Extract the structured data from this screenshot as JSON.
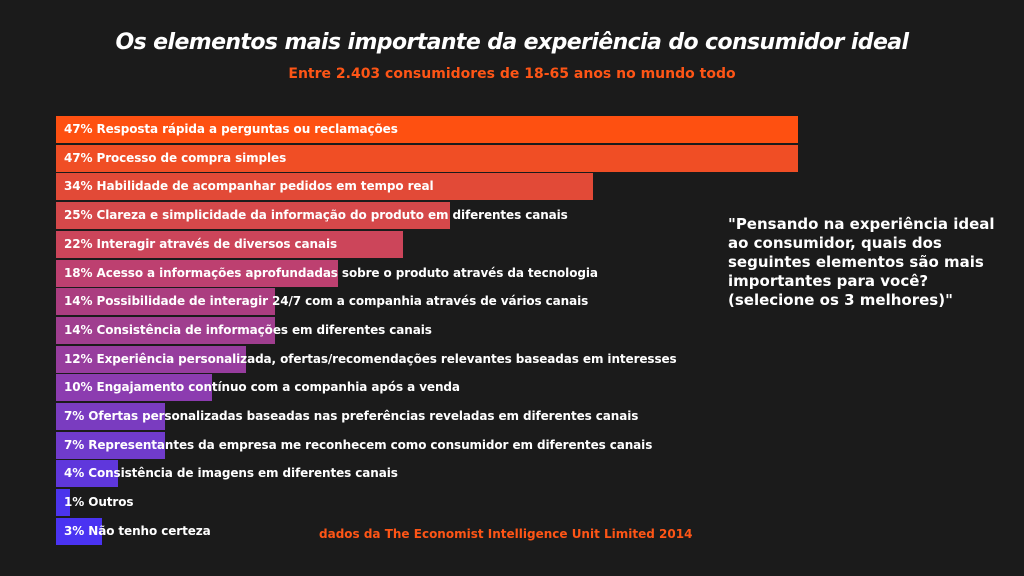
{
  "chart_data": {
    "type": "bar",
    "orientation": "horizontal",
    "title": "Os elementos mais importante da experiência do consumidor ideal",
    "subtitle": "Entre 2.403 consumidores de 18-65 anos no mundo todo",
    "xlabel": "",
    "ylabel": "",
    "unit": "%",
    "grid": false,
    "legend": "none",
    "categories": [
      "Resposta rápida a perguntas ou reclamações",
      "Processo de compra simples",
      "Habilidade de acompanhar pedidos em tempo real",
      "Clareza e simplicidade da informação do produto em diferentes canais",
      "Interagir através de diversos canais",
      "Acesso a informações aprofundadas sobre o produto através da tecnologia",
      "Possibilidade de interagir 24/7 com a companhia através de vários canais",
      "Consistência de informações em diferentes canais",
      "Experiência personalizada, ofertas/recomendações relevantes baseadas em interesses",
      "Engajamento contínuo com a companhia após a venda",
      "Ofertas personalizadas baseadas nas preferências reveladas em diferentes canais",
      "Representantes da empresa me reconhecem como consumidor em diferentes canais",
      "Consistência de imagens em diferentes canais",
      "Outros",
      "Não tenho certeza"
    ],
    "values": [
      47,
      47,
      34,
      25,
      22,
      18,
      14,
      14,
      12,
      10,
      7,
      7,
      4,
      1,
      3
    ],
    "labels": [
      "47% Resposta rápida a perguntas ou reclamações",
      "47% Processo de compra simples",
      "34% Habilidade de acompanhar pedidos em tempo real",
      "25% Clareza e simplicidade da informação do produto em diferentes canais",
      "22% Interagir através de diversos canais",
      "18% Acesso a informações aprofundadas sobre o produto através da tecnologia",
      "14% Possibilidade de interagir 24/7 com a companhia através de vários canais",
      "14% Consistência de informações em diferentes canais",
      "12% Experiência personalizada, ofertas/recomendações relevantes baseadas em interesses",
      "10% Engajamento contínuo com a companhia após a venda",
      "7% Ofertas personalizadas baseadas nas preferências reveladas em diferentes canais",
      "7% Representantes da empresa me reconhecem como consumidor em diferentes canais",
      "4% Consistência de imagens em diferentes canais",
      "1% Outros",
      "3% Não tenho certeza"
    ],
    "colors": [
      "#fe5011",
      "#f04e25",
      "#e24a37",
      "#d5484a",
      "#cc455a",
      "#bd4070",
      "#ab3d80",
      "#a03e8f",
      "#973d9e",
      "#8c3cb0",
      "#7a3cc0",
      "#703bcc",
      "#5f37dc",
      "#4b34ec",
      "#4a33f2"
    ]
  },
  "question": "\"Pensando na experiência ideal ao consumidor, quais dos seguintes elementos são mais importantes para você? (selecione os 3 melhores)\"",
  "source": "dados da The Economist Intelligence Unit Limited 2014"
}
